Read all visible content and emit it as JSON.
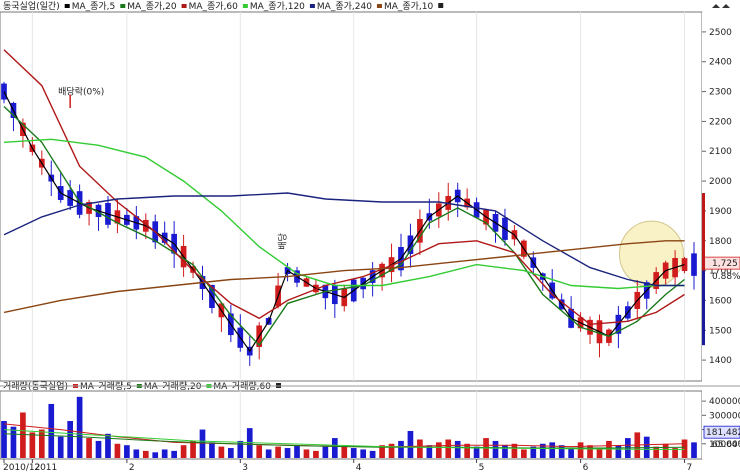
{
  "price_panel": {
    "legend": [
      {
        "label": "동국실업(일간)",
        "color": "#222222",
        "swatch": false
      },
      {
        "label": "MA_종가,5",
        "color": "#000000",
        "swatch": true
      },
      {
        "label": "MA_종가,20",
        "color": "#1a7a1a",
        "swatch": true
      },
      {
        "label": "MA_종가,60",
        "color": "#b01818",
        "swatch": true
      },
      {
        "label": "MA_종가,120",
        "color": "#33cc33",
        "swatch": true
      },
      {
        "label": "MA_종가,240",
        "color": "#1a237e",
        "swatch": true
      },
      {
        "label": "MA_종가,10",
        "color": "#8b4513",
        "swatch": true
      }
    ],
    "annotation_dividend": "배당락(0%)",
    "annotation_small": "배당",
    "current_price": "1,725",
    "change_pct": "0.88%"
  },
  "volume_panel": {
    "legend": [
      {
        "label": "거래량(동국실업)",
        "color": "#222222",
        "swatch": false
      },
      {
        "label": "MA_거래량,5",
        "color": "#cc2222",
        "swatch": true
      },
      {
        "label": "MA_거래량,20",
        "color": "#1a7a1a",
        "swatch": true
      },
      {
        "label": "MA_거래량,60",
        "color": "#33cc33",
        "swatch": true
      }
    ],
    "current_volume": "181,482",
    "volume_pct": "65.64%"
  },
  "colors": {
    "up": "#d01c1c",
    "down": "#1a1ad0",
    "ma5": "#000000",
    "ma20": "#1a7a1a",
    "ma60": "#b01818",
    "ma120": "#33cc33",
    "ma240": "#1a237e",
    "ma10": "#8b4513",
    "highlight": "#f8f0b8"
  },
  "chart_data": [
    {
      "type": "line",
      "x_labels": [
        "2010/12",
        "2011",
        "2",
        "3",
        "4",
        "5",
        "6",
        "7"
      ],
      "ylim": [
        1340,
        2560
      ],
      "y_ticks": [
        "2500",
        "2400",
        "2300",
        "2200",
        "2100",
        "2000",
        "1900",
        "1800",
        "1700",
        "1600",
        "1500",
        "1400"
      ],
      "series": [
        {
          "name": "MA_종가,5",
          "points": [
            [
              0,
              2300
            ],
            [
              3,
              2110
            ],
            [
              6,
              1960
            ],
            [
              9,
              1910
            ],
            [
              12,
              1880
            ],
            [
              15,
              1850
            ],
            [
              18,
              1790
            ],
            [
              21,
              1660
            ],
            [
              24,
              1520
            ],
            [
              26,
              1430
            ],
            [
              28,
              1530
            ],
            [
              30,
              1700
            ],
            [
              33,
              1640
            ],
            [
              36,
              1610
            ],
            [
              39,
              1680
            ],
            [
              42,
              1740
            ],
            [
              45,
              1880
            ],
            [
              48,
              1950
            ],
            [
              51,
              1880
            ],
            [
              54,
              1820
            ],
            [
              57,
              1680
            ],
            [
              60,
              1540
            ],
            [
              62,
              1510
            ],
            [
              64,
              1480
            ],
            [
              67,
              1600
            ],
            [
              70,
              1700
            ],
            [
              72,
              1720
            ]
          ]
        },
        {
          "name": "MA_종가,20",
          "points": [
            [
              0,
              2250
            ],
            [
              4,
              2130
            ],
            [
              8,
              1930
            ],
            [
              12,
              1860
            ],
            [
              16,
              1800
            ],
            [
              20,
              1720
            ],
            [
              24,
              1550
            ],
            [
              27,
              1450
            ],
            [
              30,
              1590
            ],
            [
              34,
              1630
            ],
            [
              38,
              1650
            ],
            [
              42,
              1720
            ],
            [
              45,
              1860
            ],
            [
              48,
              1910
            ],
            [
              51,
              1860
            ],
            [
              54,
              1760
            ],
            [
              57,
              1620
            ],
            [
              61,
              1510
            ],
            [
              64,
              1480
            ],
            [
              67,
              1530
            ],
            [
              70,
              1620
            ],
            [
              72,
              1670
            ]
          ]
        },
        {
          "name": "MA_종가,60",
          "points": [
            [
              0,
              2440
            ],
            [
              4,
              2320
            ],
            [
              8,
              2050
            ],
            [
              12,
              1930
            ],
            [
              16,
              1830
            ],
            [
              20,
              1700
            ],
            [
              24,
              1590
            ],
            [
              27,
              1540
            ],
            [
              30,
              1600
            ],
            [
              34,
              1650
            ],
            [
              38,
              1680
            ],
            [
              42,
              1730
            ],
            [
              46,
              1790
            ],
            [
              50,
              1800
            ],
            [
              54,
              1760
            ],
            [
              58,
              1620
            ],
            [
              62,
              1520
            ],
            [
              66,
              1530
            ],
            [
              69,
              1560
            ],
            [
              72,
              1620
            ]
          ]
        },
        {
          "name": "MA_종가,120",
          "points": [
            [
              0,
              2130
            ],
            [
              5,
              2140
            ],
            [
              10,
              2120
            ],
            [
              15,
              2080
            ],
            [
              19,
              2000
            ],
            [
              23,
              1900
            ],
            [
              27,
              1780
            ],
            [
              31,
              1690
            ],
            [
              35,
              1650
            ],
            [
              40,
              1650
            ],
            [
              45,
              1680
            ],
            [
              50,
              1720
            ],
            [
              55,
              1700
            ],
            [
              60,
              1650
            ],
            [
              65,
              1640
            ],
            [
              69,
              1650
            ],
            [
              72,
              1650
            ]
          ]
        },
        {
          "name": "MA_종가,240",
          "points": [
            [
              0,
              1820
            ],
            [
              4,
              1880
            ],
            [
              8,
              1920
            ],
            [
              12,
              1940
            ],
            [
              18,
              1950
            ],
            [
              24,
              1950
            ],
            [
              30,
              1960
            ],
            [
              34,
              1940
            ],
            [
              40,
              1930
            ],
            [
              46,
              1930
            ],
            [
              52,
              1900
            ],
            [
              57,
              1800
            ],
            [
              62,
              1710
            ],
            [
              66,
              1670
            ],
            [
              69,
              1650
            ],
            [
              72,
              1650
            ]
          ]
        },
        {
          "name": "MA_종가,10",
          "points": [
            [
              0,
              1560
            ],
            [
              6,
              1600
            ],
            [
              12,
              1630
            ],
            [
              18,
              1650
            ],
            [
              24,
              1670
            ],
            [
              30,
              1680
            ],
            [
              36,
              1700
            ],
            [
              42,
              1710
            ],
            [
              48,
              1730
            ],
            [
              54,
              1750
            ],
            [
              60,
              1770
            ],
            [
              66,
              1790
            ],
            [
              70,
              1800
            ],
            [
              72,
              1800
            ]
          ]
        }
      ]
    },
    {
      "type": "bar",
      "x_labels": [
        "2010/12",
        "2011",
        "2",
        "3",
        "4",
        "5",
        "6",
        "7"
      ],
      "ylim": [
        0,
        450000
      ],
      "y_ticks": [
        "400000",
        "300000",
        "200000",
        "100000"
      ],
      "values": [
        260000,
        220000,
        320000,
        180000,
        200000,
        380000,
        150000,
        260000,
        430000,
        140000,
        120000,
        170000,
        100000,
        90000,
        60000,
        50000,
        40000,
        60000,
        50000,
        90000,
        120000,
        200000,
        110000,
        80000,
        70000,
        120000,
        210000,
        90000,
        60000,
        80000,
        70000,
        90000,
        60000,
        50000,
        80000,
        140000,
        80000,
        70000,
        60000,
        50000,
        90000,
        100000,
        120000,
        190000,
        130000,
        90000,
        110000,
        130000,
        120000,
        100000,
        80000,
        140000,
        120000,
        90000,
        100000,
        60000,
        80000,
        100000,
        110000,
        90000,
        70000,
        110000,
        90000,
        60000,
        120000,
        90000,
        140000,
        180000,
        150000,
        80000,
        100000,
        70000,
        130000,
        110000
      ],
      "series": [
        {
          "name": "MA_거래량,5",
          "points": [
            [
              0,
              240000
            ],
            [
              6,
              200000
            ],
            [
              12,
              150000
            ],
            [
              18,
              110000
            ],
            [
              24,
              100000
            ],
            [
              30,
              90000
            ],
            [
              36,
              80000
            ],
            [
              42,
              80000
            ],
            [
              48,
              90000
            ],
            [
              54,
              90000
            ],
            [
              60,
              80000
            ],
            [
              66,
              90000
            ],
            [
              72,
              100000
            ]
          ]
        },
        {
          "name": "MA_거래량,20",
          "points": [
            [
              0,
              170000
            ],
            [
              8,
              150000
            ],
            [
              16,
              120000
            ],
            [
              24,
              100000
            ],
            [
              32,
              85000
            ],
            [
              40,
              75000
            ],
            [
              48,
              75000
            ],
            [
              56,
              70000
            ],
            [
              64,
              70000
            ],
            [
              72,
              75000
            ]
          ]
        },
        {
          "name": "MA_거래량,60",
          "points": [
            [
              0,
              200000
            ],
            [
              10,
              160000
            ],
            [
              20,
              120000
            ],
            [
              30,
              100000
            ],
            [
              40,
              80000
            ],
            [
              50,
              70000
            ],
            [
              60,
              65000
            ],
            [
              72,
              60000
            ]
          ]
        }
      ]
    }
  ]
}
